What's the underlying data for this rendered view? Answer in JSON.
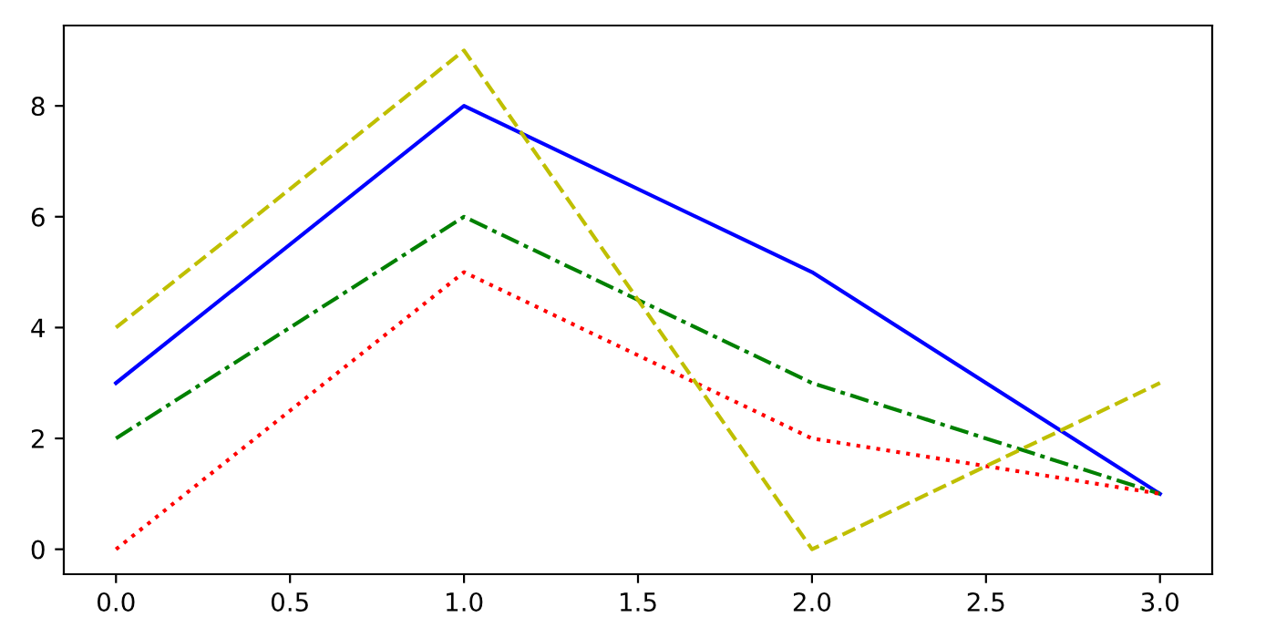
{
  "chart_data": {
    "type": "line",
    "x": [
      0,
      1,
      2,
      3
    ],
    "series": [
      {
        "color": "#0000ff",
        "line_style": "solid",
        "values": [
          3,
          8,
          5,
          1
        ]
      },
      {
        "color": "#008000",
        "line_style": "dashdot",
        "values": [
          2,
          6,
          3,
          1
        ]
      },
      {
        "color": "#ff0000",
        "line_style": "dotted",
        "values": [
          0,
          5,
          2,
          1
        ]
      },
      {
        "color": "#bfbf00",
        "line_style": "dashed",
        "values": [
          4,
          9,
          0,
          3
        ]
      }
    ],
    "xlim": [
      -0.15,
      3.15
    ],
    "ylim": [
      -0.45,
      9.45
    ],
    "xticks": [
      {
        "value": 0,
        "label": "0.0"
      },
      {
        "value": 0.5,
        "label": "0.5"
      },
      {
        "value": 1,
        "label": "1.0"
      },
      {
        "value": 1.5,
        "label": "1.5"
      },
      {
        "value": 2,
        "label": "2.0"
      },
      {
        "value": 2.5,
        "label": "2.5"
      },
      {
        "value": 3,
        "label": "3.0"
      }
    ],
    "yticks": [
      0,
      2,
      4,
      6,
      8
    ],
    "grid": false
  }
}
